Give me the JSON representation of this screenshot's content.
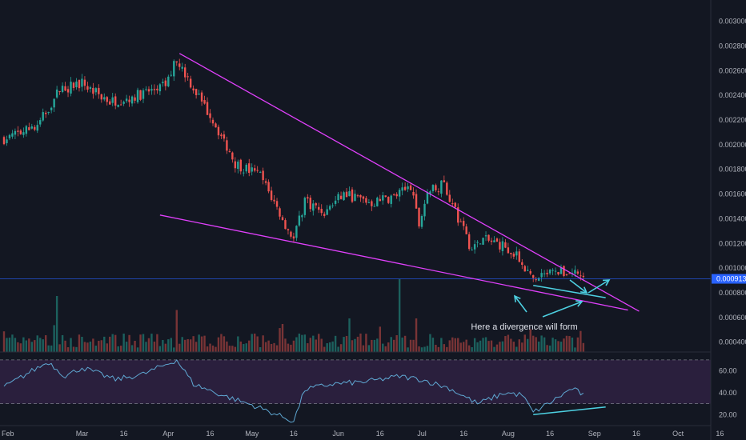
{
  "colors": {
    "background": "#131722",
    "up": "#26a69a",
    "down": "#ef5350",
    "up_volume": "#1f6f68",
    "down_volume": "#8c3a3a",
    "trendline": "#e040fb",
    "annotation": "#4dd0e1",
    "rsi_line": "#5fa8d3",
    "rsi_band": "#2a1f3d",
    "last_price": "#2962ff",
    "axis_text": "#b2b5be"
  },
  "chart_data": {
    "type": "candlestick",
    "price_axis": {
      "ticks": [
        "0.003000",
        "0.002800",
        "0.002600",
        "0.002400",
        "0.002200",
        "0.002000",
        "0.001800",
        "0.001600",
        "0.001400",
        "0.001200",
        "0.001000",
        "0.000800",
        "0.000600",
        "0.000400"
      ],
      "ylim": [
        0.00032,
        0.00316
      ]
    },
    "last_price": "0.000913",
    "rsi_axis": {
      "ticks": [
        "60.00",
        "40.00",
        "20.00"
      ],
      "band": [
        30,
        70
      ],
      "ylim": [
        10,
        75
      ]
    },
    "x_axis": {
      "labels": [
        "Feb",
        "Mar",
        "16",
        "Apr",
        "16",
        "May",
        "16",
        "Jun",
        "16",
        "Jul",
        "16",
        "Aug",
        "16",
        "Sep",
        "16",
        "Oct",
        "16"
      ]
    },
    "series_close_anchors": [
      {
        "day": 0,
        "close": 0.00205
      },
      {
        "day": 12,
        "close": 0.00215
      },
      {
        "day": 20,
        "close": 0.00245
      },
      {
        "day": 28,
        "close": 0.0025
      },
      {
        "day": 38,
        "close": 0.00235
      },
      {
        "day": 48,
        "close": 0.0024
      },
      {
        "day": 58,
        "close": 0.00248
      },
      {
        "day": 62,
        "close": 0.0027
      },
      {
        "day": 67,
        "close": 0.0025
      },
      {
        "day": 75,
        "close": 0.0022
      },
      {
        "day": 83,
        "close": 0.00185
      },
      {
        "day": 92,
        "close": 0.00175
      },
      {
        "day": 100,
        "close": 0.0014
      },
      {
        "day": 104,
        "close": 0.00123
      },
      {
        "day": 108,
        "close": 0.00155
      },
      {
        "day": 115,
        "close": 0.00145
      },
      {
        "day": 122,
        "close": 0.0016
      },
      {
        "day": 132,
        "close": 0.00153
      },
      {
        "day": 140,
        "close": 0.00158
      },
      {
        "day": 146,
        "close": 0.00165
      },
      {
        "day": 149,
        "close": 0.00135
      },
      {
        "day": 152,
        "close": 0.00162
      },
      {
        "day": 158,
        "close": 0.00168
      },
      {
        "day": 163,
        "close": 0.0014
      },
      {
        "day": 168,
        "close": 0.00115
      },
      {
        "day": 172,
        "close": 0.00123
      },
      {
        "day": 180,
        "close": 0.00118
      },
      {
        "day": 186,
        "close": 0.00105
      },
      {
        "day": 190,
        "close": 0.00088
      },
      {
        "day": 195,
        "close": 0.00095
      },
      {
        "day": 205,
        "close": 0.00097
      },
      {
        "day": 208,
        "close": 0.00092
      }
    ],
    "rsi_anchors": [
      {
        "day": 0,
        "rsi": 45
      },
      {
        "day": 10,
        "rsi": 60
      },
      {
        "day": 16,
        "rsi": 68
      },
      {
        "day": 22,
        "rsi": 55
      },
      {
        "day": 28,
        "rsi": 63
      },
      {
        "day": 40,
        "rsi": 52
      },
      {
        "day": 50,
        "rsi": 57
      },
      {
        "day": 62,
        "rsi": 70
      },
      {
        "day": 68,
        "rsi": 48
      },
      {
        "day": 78,
        "rsi": 38
      },
      {
        "day": 90,
        "rsi": 28
      },
      {
        "day": 100,
        "rsi": 18
      },
      {
        "day": 104,
        "rsi": 14
      },
      {
        "day": 108,
        "rsi": 43
      },
      {
        "day": 118,
        "rsi": 48
      },
      {
        "day": 130,
        "rsi": 50
      },
      {
        "day": 142,
        "rsi": 55
      },
      {
        "day": 150,
        "rsi": 52
      },
      {
        "day": 160,
        "rsi": 44
      },
      {
        "day": 170,
        "rsi": 30
      },
      {
        "day": 180,
        "rsi": 40
      },
      {
        "day": 186,
        "rsi": 38
      },
      {
        "day": 190,
        "rsi": 22
      },
      {
        "day": 196,
        "rsi": 31
      },
      {
        "day": 204,
        "rsi": 44
      },
      {
        "day": 208,
        "rsi": 38
      }
    ],
    "volume_spikes": [
      {
        "day": 19,
        "volume": 1.0
      },
      {
        "day": 62,
        "volume": 0.75
      },
      {
        "day": 142,
        "volume": 1.3
      },
      {
        "day": 148,
        "volume": 0.6
      },
      {
        "day": 100,
        "volume": 0.5
      },
      {
        "day": 124,
        "volume": 0.6
      }
    ],
    "drawings": {
      "upper_trendline": [
        {
          "day": 63,
          "price": 0.00274
        },
        {
          "day": 228,
          "price": 0.00065
        }
      ],
      "lower_trendline": [
        {
          "day": 56,
          "price": 0.00143
        },
        {
          "day": 224,
          "price": 0.00066
        }
      ],
      "price_divergence_line": [
        {
          "day": 190,
          "price": 0.00086
        },
        {
          "day": 216,
          "price": 0.00076
        }
      ],
      "rsi_divergence_line": [
        {
          "day": 190,
          "rsi": 20
        },
        {
          "day": 216,
          "rsi": 27
        }
      ],
      "annotation": "Here a divergence will form"
    }
  }
}
